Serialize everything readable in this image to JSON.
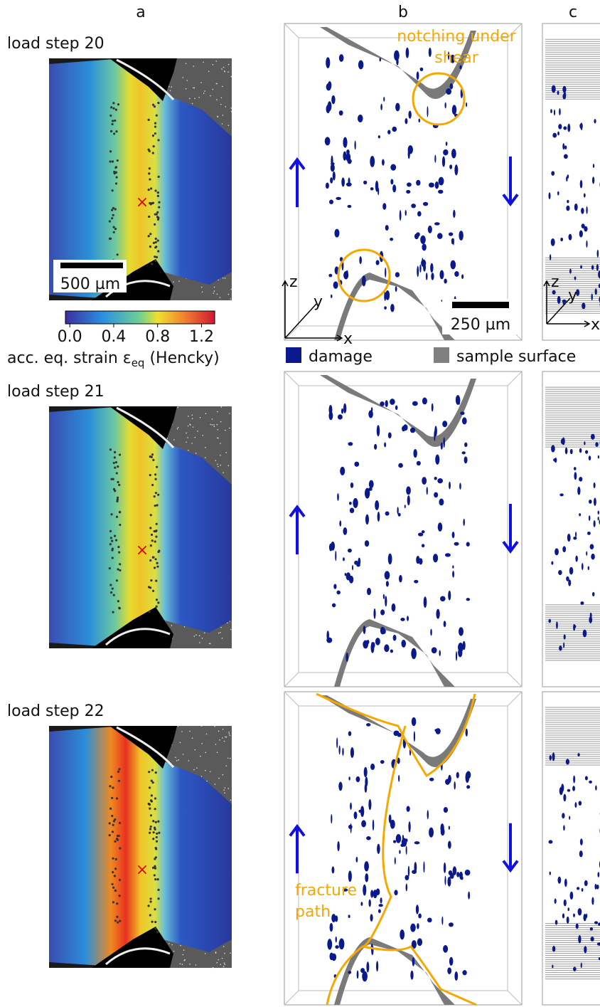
{
  "columns": [
    "a",
    "b",
    "c"
  ],
  "rows": [
    {
      "label": "load step 20"
    },
    {
      "label": "load step 21"
    },
    {
      "label": "load step 22"
    }
  ],
  "scale_bar_a": "500 µm",
  "scale_bar_b": "250 µm",
  "colorbar": {
    "lim": [
      -0.04,
      1.32
    ],
    "ticks": [
      {
        "value": 0,
        "label": "0.0"
      },
      {
        "value": 0.4,
        "label": "0.4"
      },
      {
        "value": 0.8,
        "label": "0.8"
      },
      {
        "value": 1.2,
        "label": "1.2"
      }
    ],
    "label": {
      "text": "acc. eq. strain ε",
      "sub": "eq",
      "after": " (Hencky)"
    }
  },
  "axes_b": {
    "z": "z",
    "y": "y",
    "x": "x"
  },
  "axes_c": {
    "z": "z",
    "y": "y",
    "x": "x"
  },
  "annotation_notching": [
    "notching under",
    "shear"
  ],
  "annotation_fracture": [
    "fracture",
    "path"
  ],
  "legend": [
    {
      "name": "damage",
      "color": "#0a1a8c"
    },
    {
      "name": "sample surface",
      "color": "#808080"
    }
  ]
}
